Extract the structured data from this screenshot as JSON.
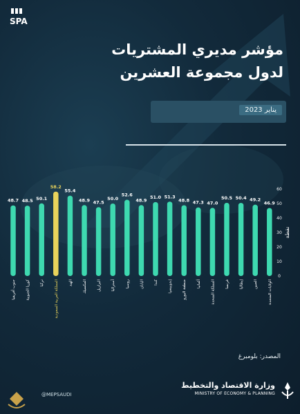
{
  "header": {
    "logo_text": "SPA",
    "title_line1": "مؤشر مديري المشتريات",
    "title_line2": "لدول مجموعة العشرين",
    "date": "يناير 2023"
  },
  "chart_data": {
    "type": "bar",
    "categories": [
      "جنوب أفريقيا",
      "كوريا الجنوبية",
      "تركيا",
      "المملكة العربية السعودية",
      "الهند",
      "المكسيك",
      "البرازيل",
      "أستراليا",
      "روسيا",
      "اليابان",
      "كندا",
      "إندونيسيا",
      "منطقة اليورو",
      "ألمانيا",
      "المملكة المتحدة",
      "فرنسا",
      "إيطاليا",
      "الصين",
      "الولايات المتحدة"
    ],
    "values": [
      48.7,
      48.5,
      50.1,
      58.2,
      55.4,
      48.9,
      47.5,
      50.0,
      52.6,
      48.9,
      51.0,
      51.3,
      48.8,
      47.3,
      47.0,
      50.5,
      50.4,
      49.2,
      46.9
    ],
    "value_labels": [
      "48.7",
      "48.5",
      "50.1",
      "58.2",
      "55.4",
      "48.9",
      "47.5",
      "50.0",
      "52.6",
      "48.9",
      "51.0",
      "51.3",
      "48.8",
      "47.3",
      "47.0",
      "50.5",
      "50.4",
      "49.2",
      "46.9"
    ],
    "highlight_index": 3,
    "ylabel": "نقطة",
    "yticks": [
      "0",
      "10",
      "20",
      "30",
      "40",
      "50",
      "60"
    ],
    "ylim": [
      0,
      60
    ],
    "colors": {
      "bar": "#3ed9b0",
      "highlight": "#e9d35b",
      "highlight_label": "#e9d35b",
      "label": "#ffffff"
    }
  },
  "footer": {
    "source": "المصدر: بلومبرغ",
    "social": "@MEPSAUDI",
    "ministry_ar": "وزارة الاقتصاد والتخطيط",
    "ministry_en": "MINISTRY OF ECONOMY & PLANNING"
  }
}
